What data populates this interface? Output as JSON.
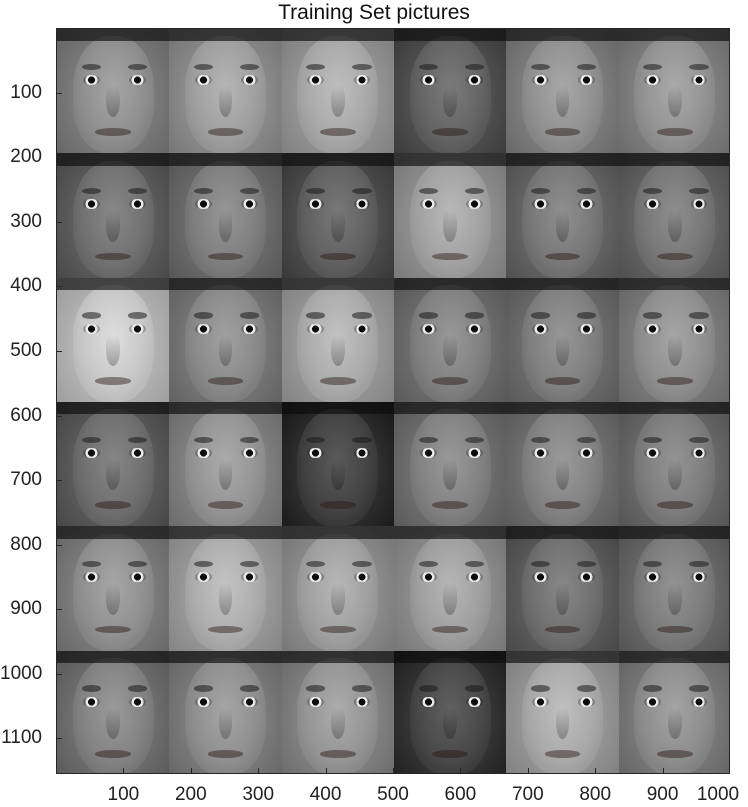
{
  "title": "Training Set pictures",
  "grid": {
    "rows": 6,
    "cols": 6
  },
  "image_extent": {
    "x": [
      0,
      1000
    ],
    "y": [
      0,
      1155
    ]
  },
  "y_axis": {
    "ticks": [
      "100",
      "200",
      "300",
      "400",
      "500",
      "600",
      "700",
      "800",
      "900",
      "1000",
      "1100"
    ]
  },
  "x_axis": {
    "ticks": [
      "100",
      "200",
      "300",
      "400",
      "500",
      "600",
      "700",
      "800",
      "900",
      "1000"
    ]
  },
  "faces": [
    {
      "tone": "#8a8a8a"
    },
    {
      "tone": "#9a9a9a"
    },
    {
      "tone": "#a3a3a3"
    },
    {
      "tone": "#5f5f5f"
    },
    {
      "tone": "#8c8c8c"
    },
    {
      "tone": "#8e8e8e"
    },
    {
      "tone": "#6c6c6c"
    },
    {
      "tone": "#7a7a7a"
    },
    {
      "tone": "#5c5c5c"
    },
    {
      "tone": "#9d9d9d"
    },
    {
      "tone": "#737373"
    },
    {
      "tone": "#727272"
    },
    {
      "tone": "#c2c2c2"
    },
    {
      "tone": "#858585"
    },
    {
      "tone": "#a6a6a6"
    },
    {
      "tone": "#7c7c7c"
    },
    {
      "tone": "#7b7b7b"
    },
    {
      "tone": "#8a8a8a"
    },
    {
      "tone": "#6a6a6a"
    },
    {
      "tone": "#8f8f8f"
    },
    {
      "tone": "#3e3e3e"
    },
    {
      "tone": "#7d7d7d"
    },
    {
      "tone": "#7e7e7e"
    },
    {
      "tone": "#787878"
    },
    {
      "tone": "#8b8b8b"
    },
    {
      "tone": "#a8a8a8"
    },
    {
      "tone": "#9b9b9b"
    },
    {
      "tone": "#9a9a9a"
    },
    {
      "tone": "#6b6b6b"
    },
    {
      "tone": "#777777"
    },
    {
      "tone": "#7e7e7e"
    },
    {
      "tone": "#8a8a8a"
    },
    {
      "tone": "#909090"
    },
    {
      "tone": "#444444"
    },
    {
      "tone": "#a4a4a4"
    },
    {
      "tone": "#888888"
    }
  ]
}
